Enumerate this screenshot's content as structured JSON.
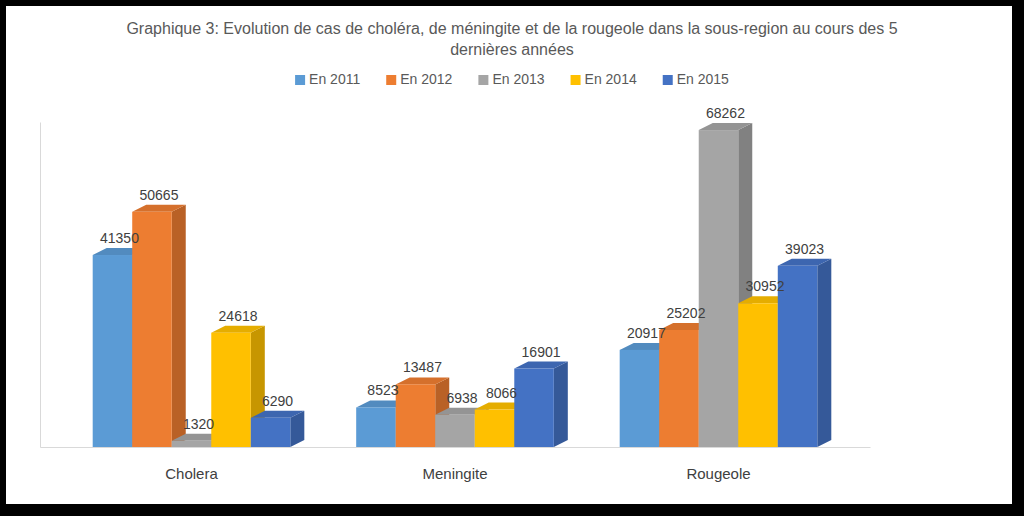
{
  "chart_data": {
    "type": "bar",
    "title": "Graphique 3: Evolution de cas de choléra, de méningite et de la rougeole dans la sous-region au cours des 5 dernières années",
    "categories": [
      "Cholera",
      "Meningite",
      "Rougeole"
    ],
    "series": [
      {
        "name": "En 2011",
        "color": "#5b9bd5",
        "values": [
          41350,
          8523,
          20917
        ]
      },
      {
        "name": "En 2012",
        "color": "#ed7d31",
        "values": [
          50665,
          13487,
          25202
        ]
      },
      {
        "name": "En 2013",
        "color": "#a5a5a5",
        "values": [
          1320,
          6938,
          68262
        ]
      },
      {
        "name": "En 2014",
        "color": "#ffc000",
        "values": [
          24618,
          8066,
          30952
        ]
      },
      {
        "name": "En 2015",
        "color": "#4472c4",
        "values": [
          6290,
          16901,
          39023
        ]
      }
    ],
    "ylim": [
      0,
      70000
    ],
    "data_labels": true,
    "tick_labels": "x",
    "legend": "top",
    "grid": false
  }
}
